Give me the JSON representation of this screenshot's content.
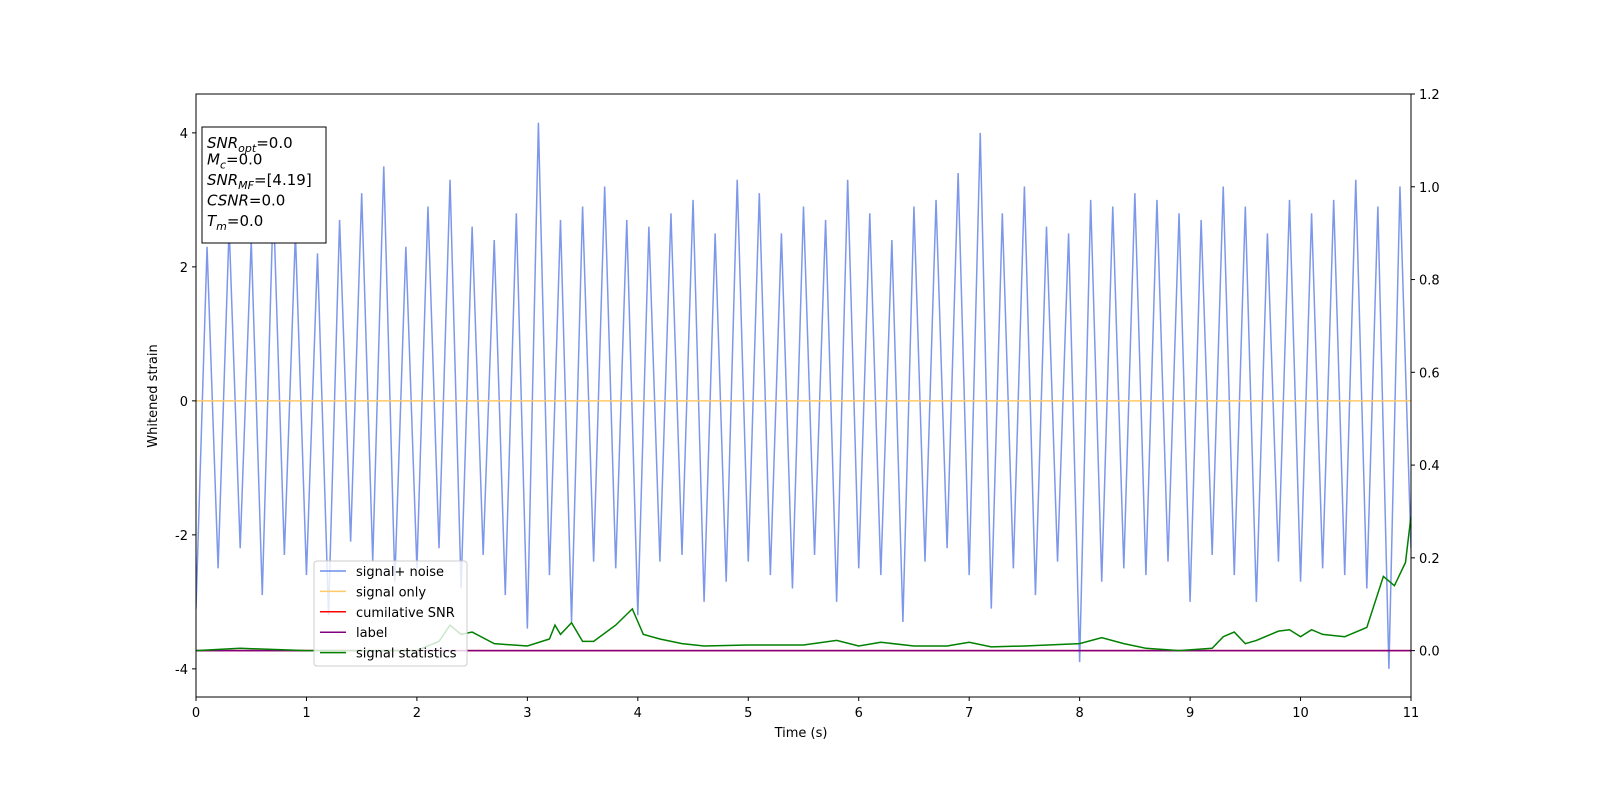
{
  "chart_data": {
    "type": "line",
    "xlabel": "Time (s)",
    "ylabel": "Whitened strain",
    "xlim": [
      0,
      11
    ],
    "xticks": [
      0,
      1,
      2,
      3,
      4,
      5,
      6,
      7,
      8,
      9,
      10,
      11
    ],
    "ylim": [
      -4.42,
      4.58
    ],
    "yticks": [
      -4,
      -2,
      0,
      2,
      4
    ],
    "y2lim": [
      -0.1,
      1.2
    ],
    "y2ticks": [
      {
        "value": 0,
        "label": "0.0"
      },
      {
        "value": 0.2,
        "label": "0.2"
      },
      {
        "value": 0.4,
        "label": "0.4"
      },
      {
        "value": 0.6,
        "label": "0.6"
      },
      {
        "value": 0.8,
        "label": "0.8"
      },
      {
        "value": 1.0,
        "label": "1.0"
      },
      {
        "value": 1.2,
        "label": "1.2"
      }
    ],
    "legend": "lower left",
    "textbox": [
      {
        "name": "SNR",
        "sub": "opt",
        "rest": "=0.0"
      },
      {
        "name": "M",
        "sub": "c",
        "rest": "=0.0"
      },
      {
        "name": "SNR",
        "sub": "MF",
        "rest": "=[4.19]"
      },
      {
        "name": "CSNR",
        "sub": null,
        "rest": "=0.0"
      },
      {
        "name": "T",
        "sub": "m",
        "rest": "=0.0"
      }
    ],
    "series": [
      {
        "name": "signal+ noise",
        "color": "#6f8de8",
        "x": [
          0,
          0.1,
          0.2,
          0.3,
          0.4,
          0.5,
          0.6,
          0.7,
          0.8,
          0.9,
          1,
          1.1,
          1.2,
          1.3,
          1.4,
          1.5,
          1.6,
          1.7,
          1.8,
          1.9,
          2,
          2.1,
          2.2,
          2.3,
          2.4,
          2.5,
          2.6,
          2.7,
          2.8,
          2.9,
          3,
          3.1,
          3.2,
          3.3,
          3.4,
          3.5,
          3.6,
          3.7,
          3.8,
          3.9,
          4,
          4.1,
          4.2,
          4.3,
          4.4,
          4.5,
          4.6,
          4.7,
          4.8,
          4.9,
          5,
          5.1,
          5.2,
          5.3,
          5.4,
          5.5,
          5.6,
          5.7,
          5.8,
          5.9,
          6,
          6.1,
          6.2,
          6.3,
          6.4,
          6.5,
          6.6,
          6.7,
          6.8,
          6.9,
          7,
          7.1,
          7.2,
          7.3,
          7.4,
          7.5,
          7.6,
          7.7,
          7.8,
          7.9,
          8,
          8.1,
          8.2,
          8.3,
          8.4,
          8.5,
          8.6,
          8.7,
          8.8,
          8.9,
          9,
          9.1,
          9.2,
          9.3,
          9.4,
          9.5,
          9.6,
          9.7,
          9.8,
          9.9,
          10,
          10.1,
          10.2,
          10.3,
          10.4,
          10.5,
          10.6,
          10.7,
          10.8,
          10.9,
          11
        ],
        "values": [
          -3.1,
          2.3,
          -2.5,
          2.6,
          -2.2,
          2.4,
          -2.9,
          3.0,
          -2.3,
          2.5,
          -2.6,
          2.2,
          -3.2,
          2.7,
          -2.1,
          3.1,
          -2.4,
          3.5,
          -2.7,
          2.3,
          -2.5,
          2.9,
          -2.2,
          3.3,
          -2.8,
          2.6,
          -2.3,
          2.4,
          -2.9,
          2.8,
          -3.4,
          4.15,
          -2.6,
          2.7,
          -3.3,
          2.9,
          -2.4,
          3.2,
          -2.5,
          2.7,
          -3.2,
          2.6,
          -2.4,
          2.8,
          -2.3,
          3.0,
          -3.0,
          2.5,
          -2.7,
          3.3,
          -2.4,
          3.1,
          -2.6,
          2.5,
          -2.8,
          2.9,
          -2.3,
          2.7,
          -3.0,
          3.3,
          -2.5,
          2.8,
          -2.6,
          2.4,
          -3.3,
          2.9,
          -2.4,
          3.0,
          -2.2,
          3.4,
          -2.6,
          4.0,
          -3.1,
          2.8,
          -2.5,
          3.2,
          -2.9,
          2.6,
          -2.4,
          2.5,
          -3.9,
          3.0,
          -2.7,
          2.9,
          -2.5,
          3.1,
          -2.6,
          3.0,
          -2.4,
          2.8,
          -3.0,
          2.7,
          -2.3,
          3.2,
          -2.6,
          2.9,
          -3.0,
          2.5,
          -2.4,
          3.0,
          -2.7,
          2.8,
          -2.5,
          3.0,
          -2.6,
          3.3,
          -2.8,
          2.9,
          -4.0,
          3.2,
          -2.2
        ]
      },
      {
        "name": "signal only",
        "color": "#ffc966",
        "x": [
          0,
          11
        ],
        "values": [
          0,
          0
        ]
      },
      {
        "name": "cumilative SNR",
        "color": "#ff0000",
        "axis": "y2",
        "x": [
          0,
          11
        ],
        "values": [
          0,
          0
        ]
      },
      {
        "name": "label",
        "color": "#800080",
        "axis": "y2",
        "x": [
          0,
          11
        ],
        "values": [
          0,
          0
        ]
      },
      {
        "name": "signal statistics",
        "color": "#008000",
        "axis": "y2",
        "x": [
          0,
          0.4,
          1,
          2,
          2.2,
          2.3,
          2.4,
          2.5,
          2.7,
          3,
          3.2,
          3.25,
          3.3,
          3.4,
          3.5,
          3.6,
          3.8,
          3.95,
          4.05,
          4.2,
          4.4,
          4.6,
          5,
          5.5,
          5.8,
          6,
          6.2,
          6.5,
          6.8,
          7,
          7.2,
          7.5,
          8,
          8.2,
          8.4,
          8.6,
          8.9,
          9.2,
          9.3,
          9.4,
          9.5,
          9.6,
          9.8,
          9.9,
          10,
          10.1,
          10.2,
          10.4,
          10.6,
          10.75,
          10.85,
          10.95,
          11
        ],
        "values": [
          0,
          0.005,
          0,
          0,
          0.02,
          0.055,
          0.035,
          0.04,
          0.015,
          0.01,
          0.025,
          0.055,
          0.035,
          0.06,
          0.02,
          0.02,
          0.055,
          0.09,
          0.035,
          0.025,
          0.015,
          0.01,
          0.012,
          0.012,
          0.022,
          0.01,
          0.018,
          0.01,
          0.01,
          0.018,
          0.008,
          0.01,
          0.015,
          0.028,
          0.015,
          0.005,
          0,
          0.005,
          0.03,
          0.04,
          0.015,
          0.022,
          0.042,
          0.045,
          0.03,
          0.045,
          0.035,
          0.03,
          0.05,
          0.16,
          0.14,
          0.19,
          0.29
        ]
      }
    ]
  }
}
